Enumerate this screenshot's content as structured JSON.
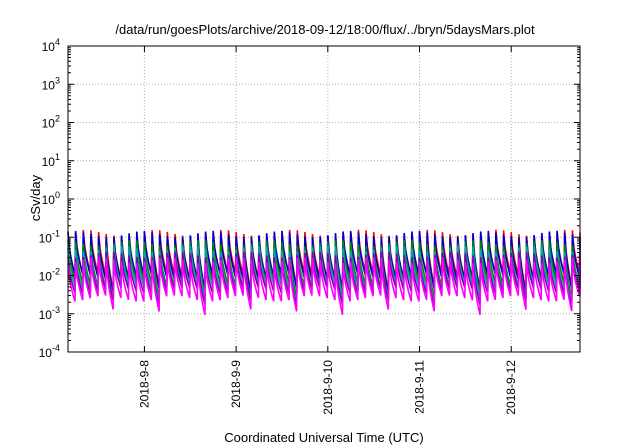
{
  "chart_data": {
    "type": "line",
    "title": "/data/run/goesPlots/archive/2018-09-12/18:00/flux/../bryn/5daysMars.plot",
    "xlabel": "Coordinated Universal Time (UTC)",
    "ylabel": "cSv/day",
    "yscale": "log",
    "ylim": [
      0.0001,
      10000
    ],
    "y_tick_labels": [
      {
        "base": "10",
        "exp": "4"
      },
      {
        "base": "10",
        "exp": "3"
      },
      {
        "base": "10",
        "exp": "2"
      },
      {
        "base": "10",
        "exp": "1"
      },
      {
        "base": "10",
        "exp": "0"
      },
      {
        "base": "10",
        "exp": "-1"
      },
      {
        "base": "10",
        "exp": "-2"
      },
      {
        "base": "10",
        "exp": "-3"
      },
      {
        "base": "10",
        "exp": "-4"
      }
    ],
    "x_tick_labels": [
      "2018-9-8",
      "2018-9-9",
      "2018-9-10",
      "2018-9-11",
      "2018-9-12"
    ],
    "xlim": [
      "2018-09-07T04:00",
      "2018-09-12T18:00"
    ],
    "grid": true,
    "series": [
      {
        "color": "#ff0000",
        "upper": 0.13,
        "lower": 0.01
      },
      {
        "color": "#0000cc",
        "upper": 0.12,
        "lower": 0.009
      },
      {
        "color": "#008800",
        "upper": 0.07,
        "lower": 0.006
      },
      {
        "color": "#00aaaa",
        "upper": 0.05,
        "lower": 0.005
      },
      {
        "color": "#8800aa",
        "upper": 0.035,
        "lower": 0.004
      },
      {
        "color": "#ff00ff",
        "upper": 0.025,
        "lower": 0.0025
      }
    ],
    "cycle_days": 0.0833,
    "note_period": "sawtooth"
  }
}
